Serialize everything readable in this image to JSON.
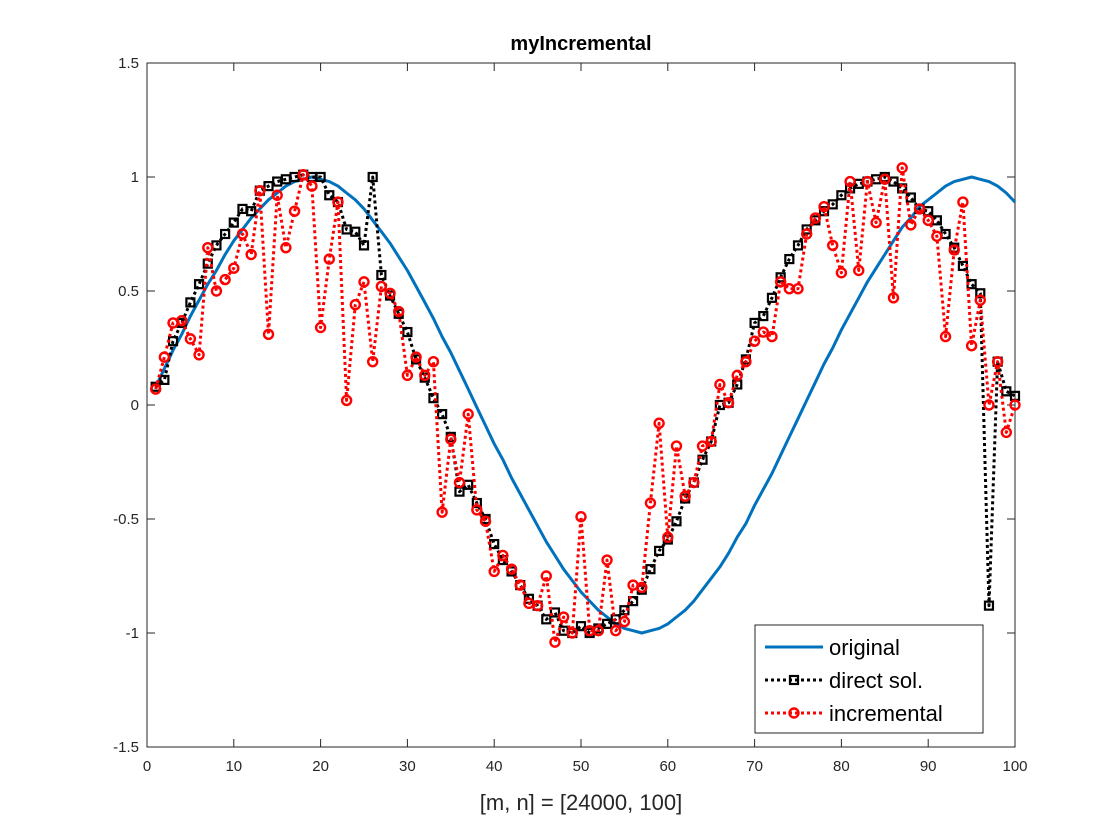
{
  "chart_data": {
    "type": "line",
    "title": "myIncremental",
    "xlabel": "[m, n] = [24000, 100]",
    "ylabel": "",
    "xlim": [
      0,
      100
    ],
    "ylim": [
      -1.5,
      1.5
    ],
    "xticks": [
      0,
      10,
      20,
      30,
      40,
      50,
      60,
      70,
      80,
      90,
      100
    ],
    "yticks": [
      -1.5,
      -1,
      -0.5,
      0,
      0.5,
      1,
      1.5
    ],
    "xtick_labels": [
      "0",
      "10",
      "20",
      "30",
      "40",
      "50",
      "60",
      "70",
      "80",
      "90",
      "100"
    ],
    "ytick_labels": [
      "-1.5",
      "-1",
      "-0.5",
      "0",
      "0.5",
      "1",
      "1.5"
    ],
    "grid": false,
    "legend_position": "bottom-right",
    "x": [
      1,
      2,
      3,
      4,
      5,
      6,
      7,
      8,
      9,
      10,
      11,
      12,
      13,
      14,
      15,
      16,
      17,
      18,
      19,
      20,
      21,
      22,
      23,
      24,
      25,
      26,
      27,
      28,
      29,
      30,
      31,
      32,
      33,
      34,
      35,
      36,
      37,
      38,
      39,
      40,
      41,
      42,
      43,
      44,
      45,
      46,
      47,
      48,
      49,
      50,
      51,
      52,
      53,
      54,
      55,
      56,
      57,
      58,
      59,
      60,
      61,
      62,
      63,
      64,
      65,
      66,
      67,
      68,
      69,
      70,
      71,
      72,
      73,
      74,
      75,
      76,
      77,
      78,
      79,
      80,
      81,
      82,
      83,
      84,
      85,
      86,
      87,
      88,
      89,
      90,
      91,
      92,
      93,
      94,
      95,
      96,
      97,
      98,
      99,
      100
    ],
    "series": [
      {
        "name": "original",
        "color": "#0072BD",
        "style": "solid",
        "marker": "none",
        "values": [
          0.08,
          0.16,
          0.24,
          0.31,
          0.39,
          0.46,
          0.53,
          0.59,
          0.66,
          0.72,
          0.77,
          0.82,
          0.86,
          0.9,
          0.93,
          0.96,
          0.98,
          0.99,
          1.0,
          0.99,
          0.98,
          0.96,
          0.93,
          0.9,
          0.86,
          0.81,
          0.76,
          0.71,
          0.65,
          0.59,
          0.52,
          0.45,
          0.38,
          0.3,
          0.23,
          0.15,
          0.07,
          -0.01,
          -0.09,
          -0.17,
          -0.24,
          -0.32,
          -0.39,
          -0.46,
          -0.53,
          -0.6,
          -0.66,
          -0.72,
          -0.77,
          -0.82,
          -0.86,
          -0.9,
          -0.93,
          -0.96,
          -0.98,
          -0.99,
          -1.0,
          -0.99,
          -0.98,
          -0.96,
          -0.93,
          -0.9,
          -0.86,
          -0.81,
          -0.76,
          -0.71,
          -0.65,
          -0.58,
          -0.52,
          -0.44,
          -0.37,
          -0.3,
          -0.22,
          -0.14,
          -0.06,
          0.02,
          0.1,
          0.18,
          0.25,
          0.33,
          0.4,
          0.47,
          0.54,
          0.6,
          0.66,
          0.72,
          0.78,
          0.82,
          0.87,
          0.9,
          0.93,
          0.96,
          0.98,
          0.99,
          1.0,
          0.99,
          0.98,
          0.96,
          0.93,
          0.89
        ]
      },
      {
        "name": "direct sol.",
        "color": "#000000",
        "style": "dotted",
        "marker": "square",
        "values": [
          0.08,
          0.11,
          0.28,
          0.36,
          0.45,
          0.53,
          0.62,
          0.7,
          0.75,
          0.8,
          0.86,
          0.85,
          0.94,
          0.96,
          0.98,
          0.99,
          1.0,
          1.01,
          1.0,
          1.0,
          0.92,
          0.89,
          0.77,
          0.76,
          0.7,
          1.0,
          0.57,
          0.48,
          0.4,
          0.32,
          0.2,
          0.12,
          0.03,
          -0.04,
          -0.14,
          -0.38,
          -0.35,
          -0.43,
          -0.5,
          -0.61,
          -0.68,
          -0.73,
          -0.79,
          -0.85,
          -0.88,
          -0.94,
          -0.91,
          -0.99,
          -1.0,
          -0.97,
          -1.0,
          -0.98,
          -0.96,
          -0.94,
          -0.9,
          -0.86,
          -0.81,
          -0.72,
          -0.64,
          -0.59,
          -0.51,
          -0.41,
          -0.34,
          -0.24,
          -0.16,
          0.0,
          0.01,
          0.09,
          0.2,
          0.36,
          0.39,
          0.47,
          0.56,
          0.64,
          0.7,
          0.77,
          0.81,
          0.85,
          0.88,
          0.92,
          0.95,
          0.97,
          0.98,
          0.99,
          1.0,
          0.98,
          0.95,
          0.91,
          0.86,
          0.85,
          0.81,
          0.75,
          0.69,
          0.61,
          0.53,
          0.49,
          -0.88,
          0.19,
          0.06,
          0.04
        ]
      },
      {
        "name": "incremental",
        "color": "#FF0000",
        "style": "dotted",
        "marker": "circle",
        "values": [
          0.07,
          0.21,
          0.36,
          0.37,
          0.29,
          0.22,
          0.69,
          0.5,
          0.55,
          0.6,
          0.75,
          0.66,
          0.94,
          0.31,
          0.92,
          0.69,
          0.85,
          1.01,
          0.96,
          0.34,
          0.64,
          0.89,
          0.02,
          0.44,
          0.54,
          0.19,
          0.52,
          0.49,
          0.41,
          0.13,
          0.21,
          0.13,
          0.19,
          -0.47,
          -0.15,
          -0.34,
          -0.04,
          -0.46,
          -0.51,
          -0.73,
          -0.66,
          -0.72,
          -0.79,
          -0.87,
          -0.88,
          -0.75,
          -1.04,
          -0.93,
          -1.0,
          -0.49,
          -0.99,
          -0.99,
          -0.68,
          -0.99,
          -0.95,
          -0.79,
          -0.8,
          -0.43,
          -0.08,
          -0.58,
          -0.18,
          -0.4,
          -0.34,
          -0.18,
          -0.16,
          0.09,
          0.01,
          0.13,
          0.19,
          0.28,
          0.32,
          0.3,
          0.54,
          0.51,
          0.51,
          0.75,
          0.82,
          0.87,
          0.7,
          0.58,
          0.98,
          0.59,
          0.98,
          0.8,
          0.99,
          0.47,
          1.04,
          0.79,
          0.86,
          0.81,
          0.74,
          0.3,
          0.68,
          0.89,
          0.26,
          0.46,
          0.0,
          0.19,
          -0.12,
          0.0
        ]
      }
    ]
  }
}
